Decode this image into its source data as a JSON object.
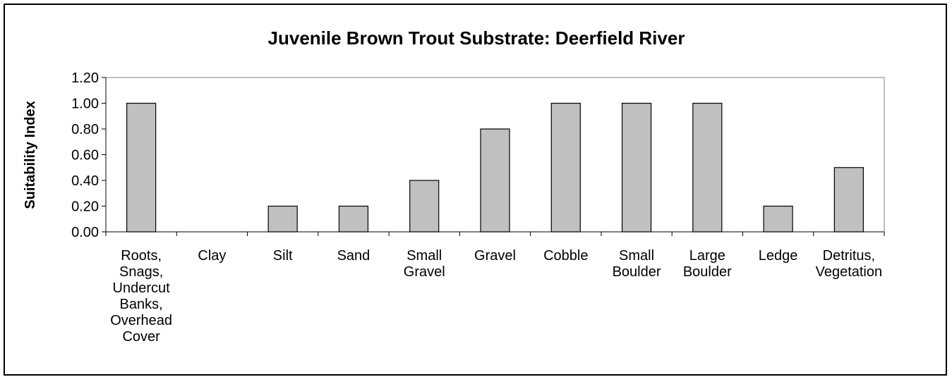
{
  "chart_data": {
    "type": "bar",
    "title": "Juvenile Brown Trout Substrate: Deerfield River",
    "xlabel": "",
    "ylabel": "Suitability Index",
    "ylim": [
      0,
      1.2
    ],
    "yticks": [
      "0.00",
      "0.20",
      "0.40",
      "0.60",
      "0.80",
      "1.00",
      "1.20"
    ],
    "ytick_values": [
      0,
      0.2,
      0.4,
      0.6,
      0.8,
      1.0,
      1.2
    ],
    "grid": false,
    "legend": "none",
    "bar_color": "#c0c0c0",
    "bar_edge_color": "#000000",
    "categories": [
      "Roots, Snags, Undercut Banks, Overhead Cover",
      "Clay",
      "Silt",
      "Sand",
      "Small Gravel",
      "Gravel",
      "Cobble",
      "Small Boulder",
      "Large Boulder",
      "Ledge",
      "Detritus, Vegetation"
    ],
    "category_label_lines": [
      [
        "Roots,",
        "Snags,",
        "Undercut",
        "Banks,",
        "Overhead",
        "Cover"
      ],
      [
        "Clay"
      ],
      [
        "Silt"
      ],
      [
        "Sand"
      ],
      [
        "Small",
        "Gravel"
      ],
      [
        "Gravel"
      ],
      [
        "Cobble"
      ],
      [
        "Small",
        "Boulder"
      ],
      [
        "Large",
        "Boulder"
      ],
      [
        "Ledge"
      ],
      [
        "Detritus,",
        "Vegetation"
      ]
    ],
    "values": [
      1.0,
      0.0,
      0.2,
      0.2,
      0.4,
      0.8,
      1.0,
      1.0,
      1.0,
      0.2,
      0.5
    ]
  }
}
